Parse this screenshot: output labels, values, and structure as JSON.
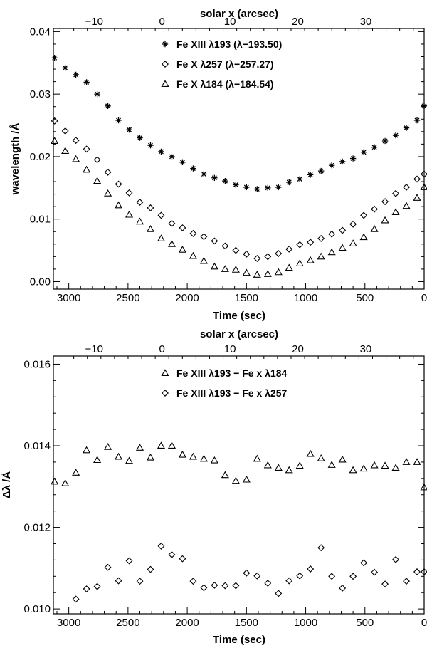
{
  "chart_data": [
    {
      "type": "scatter",
      "xlabel": "Time (sec)",
      "ylabel": "wavelength /Å",
      "top_axis_label": "solar x (arcsec)",
      "xlim": [
        3130,
        0
      ],
      "ylim": [
        -0.0012,
        0.0405
      ],
      "x_ticks": [
        "3000",
        "2500",
        "2000",
        "1500",
        "1000",
        "500",
        "0"
      ],
      "x_tick_values": [
        3000,
        2500,
        2000,
        1500,
        1000,
        500,
        0
      ],
      "y_ticks": [
        "0.00",
        "0.01",
        "0.02",
        "0.03",
        "0.04"
      ],
      "y_tick_values": [
        0.0,
        0.01,
        0.02,
        0.03,
        0.04
      ],
      "top_ticks": [
        "−10",
        "0",
        "10",
        "20",
        "30"
      ],
      "top_tick_values": [
        -10,
        0,
        10,
        20,
        30
      ],
      "top_xlim": [
        -16.0,
        38.6
      ],
      "legend_position": "top-center",
      "x": [
        3120,
        3030,
        2940,
        2850,
        2760,
        2670,
        2580,
        2490,
        2400,
        2310,
        2220,
        2130,
        2040,
        1950,
        1860,
        1770,
        1680,
        1590,
        1500,
        1410,
        1320,
        1230,
        1140,
        1050,
        960,
        870,
        780,
        690,
        600,
        510,
        420,
        330,
        240,
        150,
        60,
        0
      ],
      "series": [
        {
          "name": "Fe XIII λ193 (λ−193.50)",
          "marker": "asterisk",
          "values": [
            0.0358,
            0.0342,
            0.0331,
            0.0319,
            0.03,
            0.0281,
            0.0258,
            0.0243,
            0.023,
            0.0218,
            0.0208,
            0.02,
            0.0191,
            0.0181,
            0.0172,
            0.0166,
            0.0161,
            0.0155,
            0.0151,
            0.0148,
            0.015,
            0.0151,
            0.0159,
            0.0164,
            0.0171,
            0.0177,
            0.0186,
            0.0192,
            0.0197,
            0.0207,
            0.0215,
            0.0225,
            0.0234,
            0.0246,
            0.0258,
            0.0281
          ]
        },
        {
          "name": "Fe X λ257 (λ−257.27)",
          "marker": "diamond",
          "values": [
            0.0257,
            0.0241,
            0.0226,
            0.0212,
            0.0195,
            0.0175,
            0.0156,
            0.0142,
            0.0127,
            0.0118,
            0.0106,
            0.0093,
            0.0086,
            0.0077,
            0.0072,
            0.0065,
            0.0057,
            0.005,
            0.0044,
            0.0037,
            0.004,
            0.0045,
            0.0052,
            0.0059,
            0.0063,
            0.0069,
            0.0076,
            0.0082,
            0.0092,
            0.0106,
            0.0116,
            0.0128,
            0.0141,
            0.0151,
            0.0164,
            0.0172
          ]
        },
        {
          "name": "Fe X λ184 (λ−184.54)",
          "marker": "triangle",
          "values": [
            0.0225,
            0.0209,
            0.0196,
            0.0179,
            0.0161,
            0.0141,
            0.0122,
            0.0107,
            0.0096,
            0.0084,
            0.0069,
            0.006,
            0.0051,
            0.0041,
            0.0033,
            0.0024,
            0.002,
            0.0019,
            0.0014,
            0.0011,
            0.0012,
            0.0015,
            0.0022,
            0.0029,
            0.0034,
            0.004,
            0.0047,
            0.0054,
            0.0061,
            0.0071,
            0.0084,
            0.0098,
            0.0111,
            0.0121,
            0.0134,
            0.0151
          ]
        }
      ]
    },
    {
      "type": "scatter",
      "xlabel": "Time (sec)",
      "ylabel": "Δλ /Å",
      "top_axis_label": "solar x (arcsec)",
      "xlim": [
        3130,
        0
      ],
      "ylim": [
        0.00988,
        0.0162
      ],
      "x_ticks": [
        "3000",
        "2500",
        "2000",
        "1500",
        "1000",
        "500",
        "0"
      ],
      "x_tick_values": [
        3000,
        2500,
        2000,
        1500,
        1000,
        500,
        0
      ],
      "y_ticks": [
        "0.010",
        "0.012",
        "0.014",
        "0.016"
      ],
      "y_tick_values": [
        0.01,
        0.012,
        0.014,
        0.016
      ],
      "top_ticks": [
        "−10",
        "0",
        "10",
        "20",
        "30"
      ],
      "top_tick_values": [
        -10,
        0,
        10,
        20,
        30
      ],
      "top_xlim": [
        -16.0,
        38.6
      ],
      "legend_position": "top-center",
      "series": [
        {
          "name": "Fe XIII λ193 − Fe x λ184",
          "marker": "triangle",
          "x": [
            3120,
            3030,
            2940,
            2850,
            2760,
            2670,
            2580,
            2490,
            2400,
            2310,
            2220,
            2130,
            2040,
            1950,
            1860,
            1770,
            1680,
            1590,
            1500,
            1410,
            1320,
            1230,
            1140,
            1050,
            960,
            870,
            780,
            690,
            600,
            510,
            420,
            330,
            240,
            150,
            60,
            0
          ],
          "values": [
            0.01312,
            0.01308,
            0.01334,
            0.01389,
            0.01365,
            0.01397,
            0.01373,
            0.01363,
            0.01395,
            0.01371,
            0.014,
            0.014,
            0.01378,
            0.01373,
            0.01368,
            0.01364,
            0.01328,
            0.01314,
            0.01317,
            0.01368,
            0.01352,
            0.01346,
            0.0134,
            0.01351,
            0.0138,
            0.01369,
            0.01353,
            0.01366,
            0.0134,
            0.01344,
            0.01352,
            0.01351,
            0.01346,
            0.0136,
            0.0136,
            0.01298
          ]
        },
        {
          "name": "Fe XIII λ193 − Fe x λ257",
          "marker": "diamond",
          "x": [
            2940,
            2850,
            2760,
            2670,
            2580,
            2490,
            2400,
            2310,
            2220,
            2130,
            2040,
            1950,
            1860,
            1770,
            1680,
            1590,
            1500,
            1410,
            1320,
            1230,
            1140,
            1050,
            960,
            870,
            780,
            690,
            600,
            510,
            420,
            330,
            240,
            150,
            60,
            0
          ],
          "values": [
            0.01024,
            0.01049,
            0.01055,
            0.01102,
            0.01069,
            0.01118,
            0.01068,
            0.01097,
            0.01154,
            0.01133,
            0.01123,
            0.01068,
            0.01052,
            0.01058,
            0.01057,
            0.01057,
            0.01088,
            0.01081,
            0.01063,
            0.01038,
            0.01069,
            0.01081,
            0.01098,
            0.0115,
            0.0108,
            0.01051,
            0.0108,
            0.01113,
            0.0109,
            0.01061,
            0.01121,
            0.01068,
            0.01091,
            0.01091
          ]
        }
      ]
    }
  ]
}
